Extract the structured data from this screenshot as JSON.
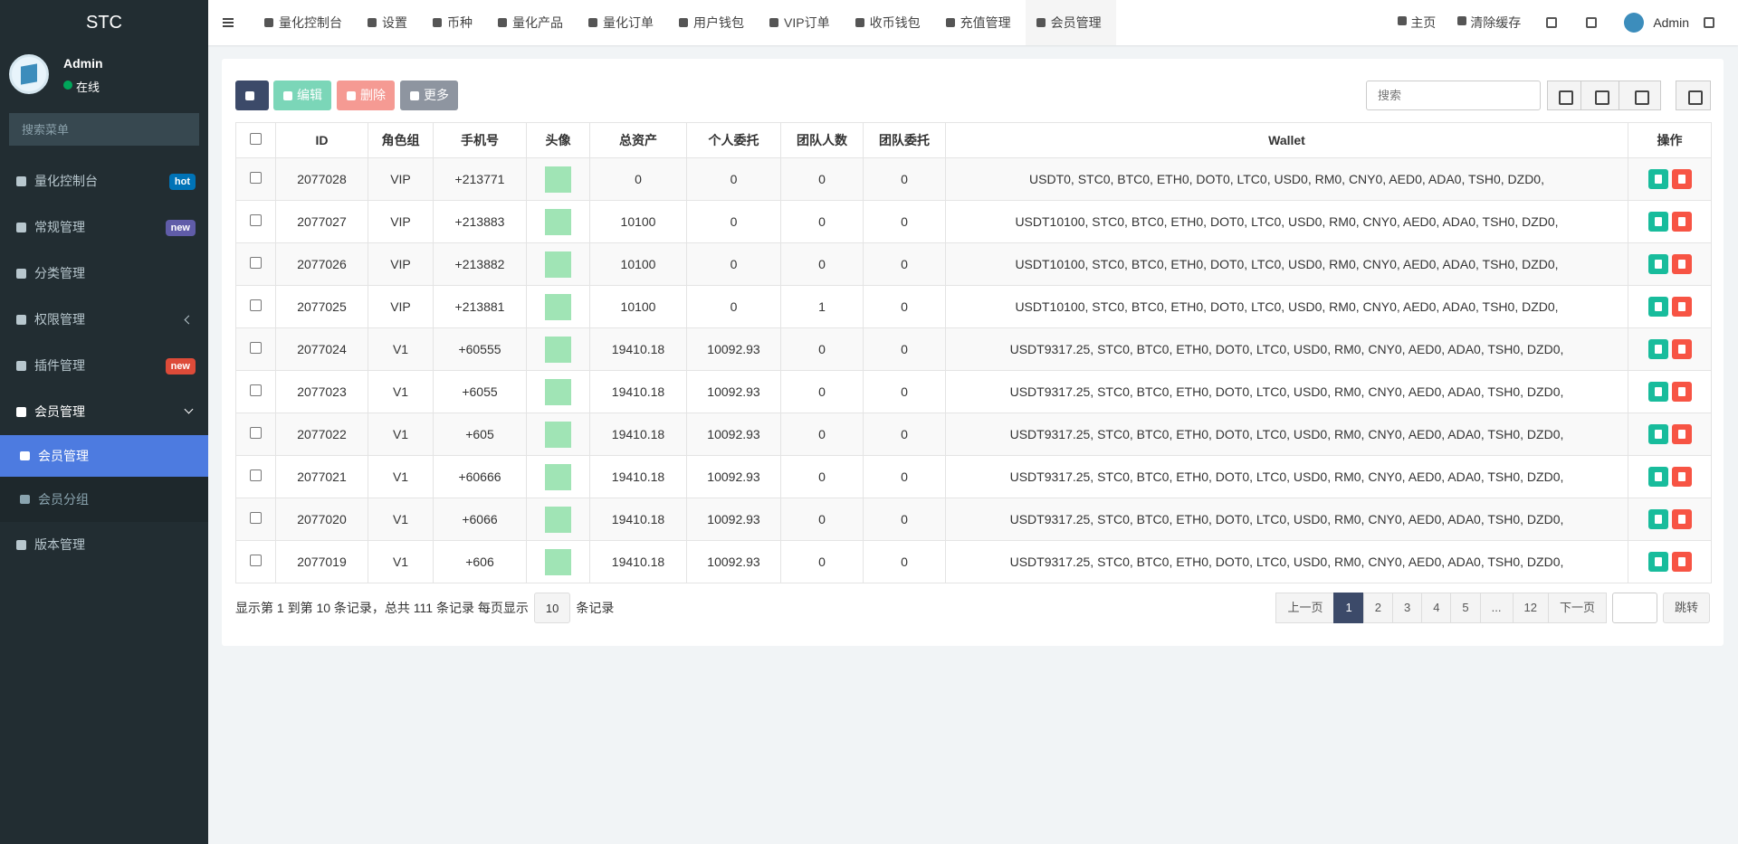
{
  "sidebar": {
    "brand": "STC",
    "user": {
      "name": "Admin",
      "status": "在线"
    },
    "search_placeholder": "搜索菜单",
    "menu": [
      {
        "label": "量化控制台",
        "badge": "hot"
      },
      {
        "label": "常规管理",
        "badge": "new"
      },
      {
        "label": "分类管理"
      },
      {
        "label": "权限管理"
      },
      {
        "label": "插件管理",
        "badge": "new"
      },
      {
        "label": "会员管理",
        "children": [
          "会员管理",
          "会员分组"
        ]
      },
      {
        "label": "版本管理"
      }
    ]
  },
  "topnav": {
    "tabs": [
      "量化控制台",
      "设置",
      "币种",
      "量化产品",
      "量化订单",
      "用户钱包",
      "VIP订单",
      "收币钱包",
      "充值管理",
      "会员管理"
    ],
    "links": [
      "主页",
      "清除缓存"
    ],
    "user": "Admin"
  },
  "toolbar": {
    "buttons": [
      "编辑",
      "删除",
      "更多"
    ],
    "search_placeholder": "搜索"
  },
  "table": {
    "columns": [
      "ID",
      "角色组",
      "手机号",
      "头像",
      "总资产",
      "个人委托",
      "团队人数",
      "团队委托",
      "Wallet",
      "操作"
    ],
    "rows": [
      [
        "2077028",
        "VIP",
        "+213771",
        "0",
        "0",
        "0",
        "0",
        "USDT0, STC0, BTC0, ETH0, DOT0, LTC0, USD0, RM0, CNY0, AED0, ADA0, TSH0, DZD0,"
      ],
      [
        "2077027",
        "VIP",
        "+213883",
        "10100",
        "0",
        "0",
        "0",
        "USDT10100, STC0, BTC0, ETH0, DOT0, LTC0, USD0, RM0, CNY0, AED0, ADA0, TSH0, DZD0,"
      ],
      [
        "2077026",
        "VIP",
        "+213882",
        "10100",
        "0",
        "0",
        "0",
        "USDT10100, STC0, BTC0, ETH0, DOT0, LTC0, USD0, RM0, CNY0, AED0, ADA0, TSH0, DZD0,"
      ],
      [
        "2077025",
        "VIP",
        "+213881",
        "10100",
        "0",
        "1",
        "0",
        "USDT10100, STC0, BTC0, ETH0, DOT0, LTC0, USD0, RM0, CNY0, AED0, ADA0, TSH0, DZD0,"
      ],
      [
        "2077024",
        "V1",
        "+60555",
        "19410.18",
        "10092.93",
        "0",
        "0",
        "USDT9317.25, STC0, BTC0, ETH0, DOT0, LTC0, USD0, RM0, CNY0, AED0, ADA0, TSH0, DZD0,"
      ],
      [
        "2077023",
        "V1",
        "+6055",
        "19410.18",
        "10092.93",
        "0",
        "0",
        "USDT9317.25, STC0, BTC0, ETH0, DOT0, LTC0, USD0, RM0, CNY0, AED0, ADA0, TSH0, DZD0,"
      ],
      [
        "2077022",
        "V1",
        "+605",
        "19410.18",
        "10092.93",
        "0",
        "0",
        "USDT9317.25, STC0, BTC0, ETH0, DOT0, LTC0, USD0, RM0, CNY0, AED0, ADA0, TSH0, DZD0,"
      ],
      [
        "2077021",
        "V1",
        "+60666",
        "19410.18",
        "10092.93",
        "0",
        "0",
        "USDT9317.25, STC0, BTC0, ETH0, DOT0, LTC0, USD0, RM0, CNY0, AED0, ADA0, TSH0, DZD0,"
      ],
      [
        "2077020",
        "V1",
        "+6066",
        "19410.18",
        "10092.93",
        "0",
        "0",
        "USDT9317.25, STC0, BTC0, ETH0, DOT0, LTC0, USD0, RM0, CNY0, AED0, ADA0, TSH0, DZD0,"
      ],
      [
        "2077019",
        "V1",
        "+606",
        "19410.18",
        "10092.93",
        "0",
        "0",
        "USDT9317.25, STC0, BTC0, ETH0, DOT0, LTC0, USD0, RM0, CNY0, AED0, ADA0, TSH0, DZD0,"
      ]
    ]
  },
  "pagination": {
    "summary": "显示第 1 到第 10 条记录，总共 111 条记录 每页显示",
    "page_size": "10",
    "summary_suffix": "条记录",
    "pages": [
      "上一页",
      "1",
      "2",
      "3",
      "4",
      "5",
      "...",
      "12",
      "下一页"
    ],
    "jump": "跳转"
  }
}
